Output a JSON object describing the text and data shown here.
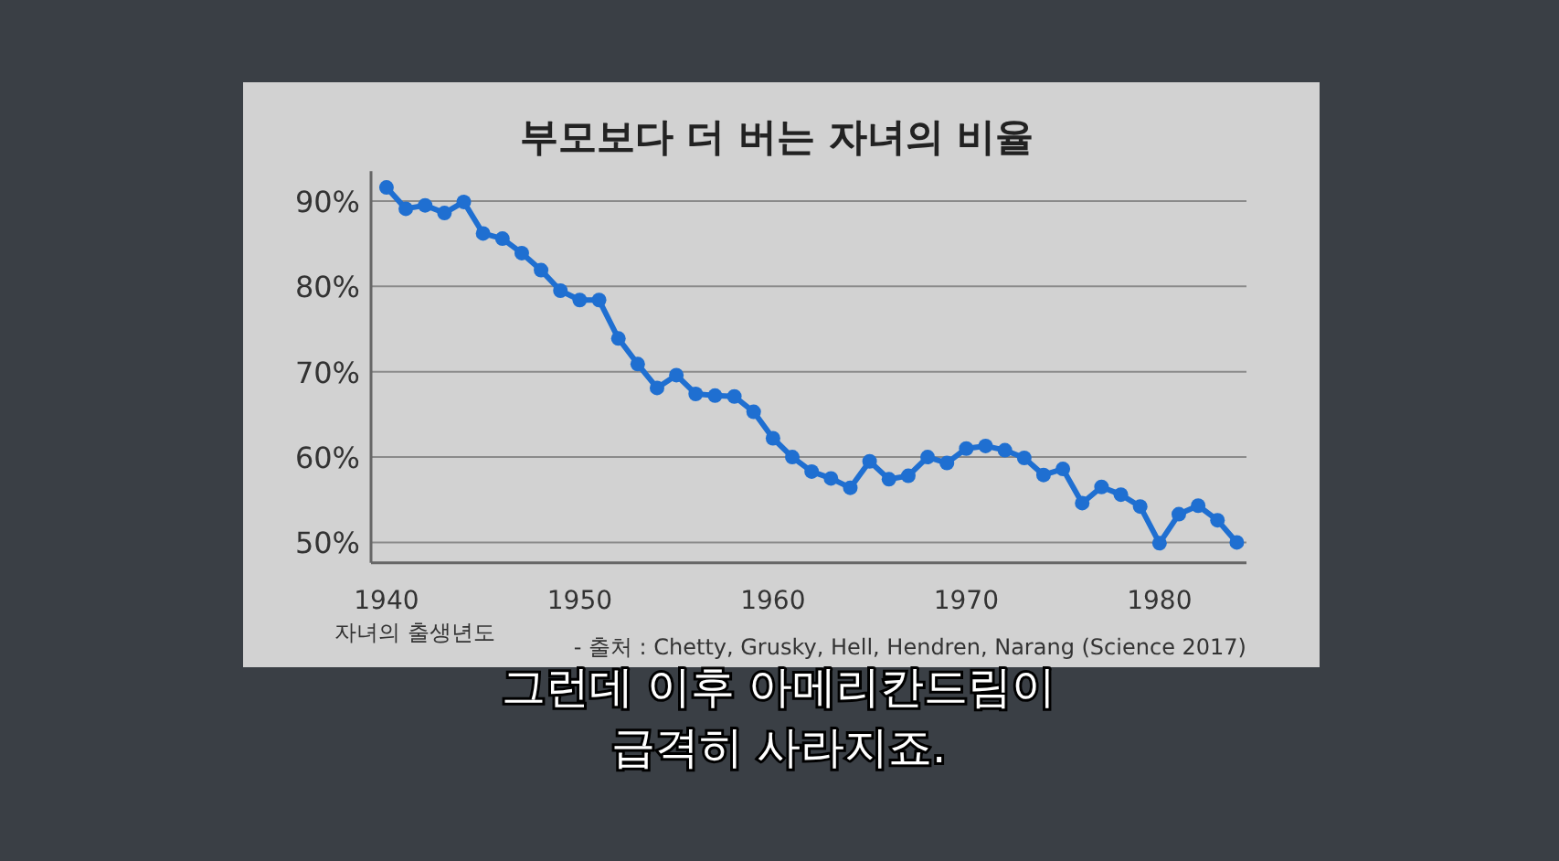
{
  "chart_data": {
    "type": "line",
    "title": "부모보다 더 버는 자녀의 비율",
    "xlabel": "자녀의 출생년도",
    "x": [
      1940,
      1941,
      1942,
      1943,
      1944,
      1945,
      1946,
      1947,
      1948,
      1949,
      1950,
      1951,
      1952,
      1953,
      1954,
      1955,
      1956,
      1957,
      1958,
      1959,
      1960,
      1961,
      1962,
      1963,
      1964,
      1965,
      1966,
      1967,
      1968,
      1969,
      1970,
      1971,
      1972,
      1973,
      1974,
      1975,
      1976,
      1977,
      1978,
      1979,
      1980,
      1981,
      1982,
      1983,
      1984
    ],
    "series": [
      {
        "color": "#1f6fd1",
        "values": [
          91.6,
          89.1,
          89.5,
          88.6,
          89.9,
          86.2,
          85.6,
          83.9,
          81.9,
          79.5,
          78.4,
          78.4,
          73.9,
          70.9,
          68.1,
          69.6,
          67.4,
          67.2,
          67.1,
          65.3,
          62.2,
          60.0,
          58.3,
          57.5,
          56.4,
          59.5,
          57.4,
          57.8,
          60.0,
          59.3,
          61.0,
          61.3,
          60.8,
          59.9,
          57.9,
          58.6,
          54.6,
          56.5,
          55.6,
          54.2,
          49.9,
          53.3,
          54.3,
          52.6,
          50.0
        ]
      }
    ],
    "xlim": [
      1939.2,
      1984.5
    ],
    "xticks": [
      1940,
      1950,
      1960,
      1970,
      1980
    ],
    "ylim": [
      47.6,
      93.5
    ],
    "yticks": [
      {
        "value": 50,
        "label": "50%"
      },
      {
        "value": 60,
        "label": "60%"
      },
      {
        "value": 70,
        "label": "70%"
      },
      {
        "value": 80,
        "label": "80%"
      },
      {
        "value": 90,
        "label": "90%"
      }
    ],
    "grid": "y",
    "marker": "circle",
    "line_style": "solid",
    "annotations": [
      "- 출처 : Chetty, Grusky, Hell, Hendren, Narang (Science 2017)",
      "그런데 이후 아메리칸드림이\n급격히 사라지죠."
    ]
  }
}
